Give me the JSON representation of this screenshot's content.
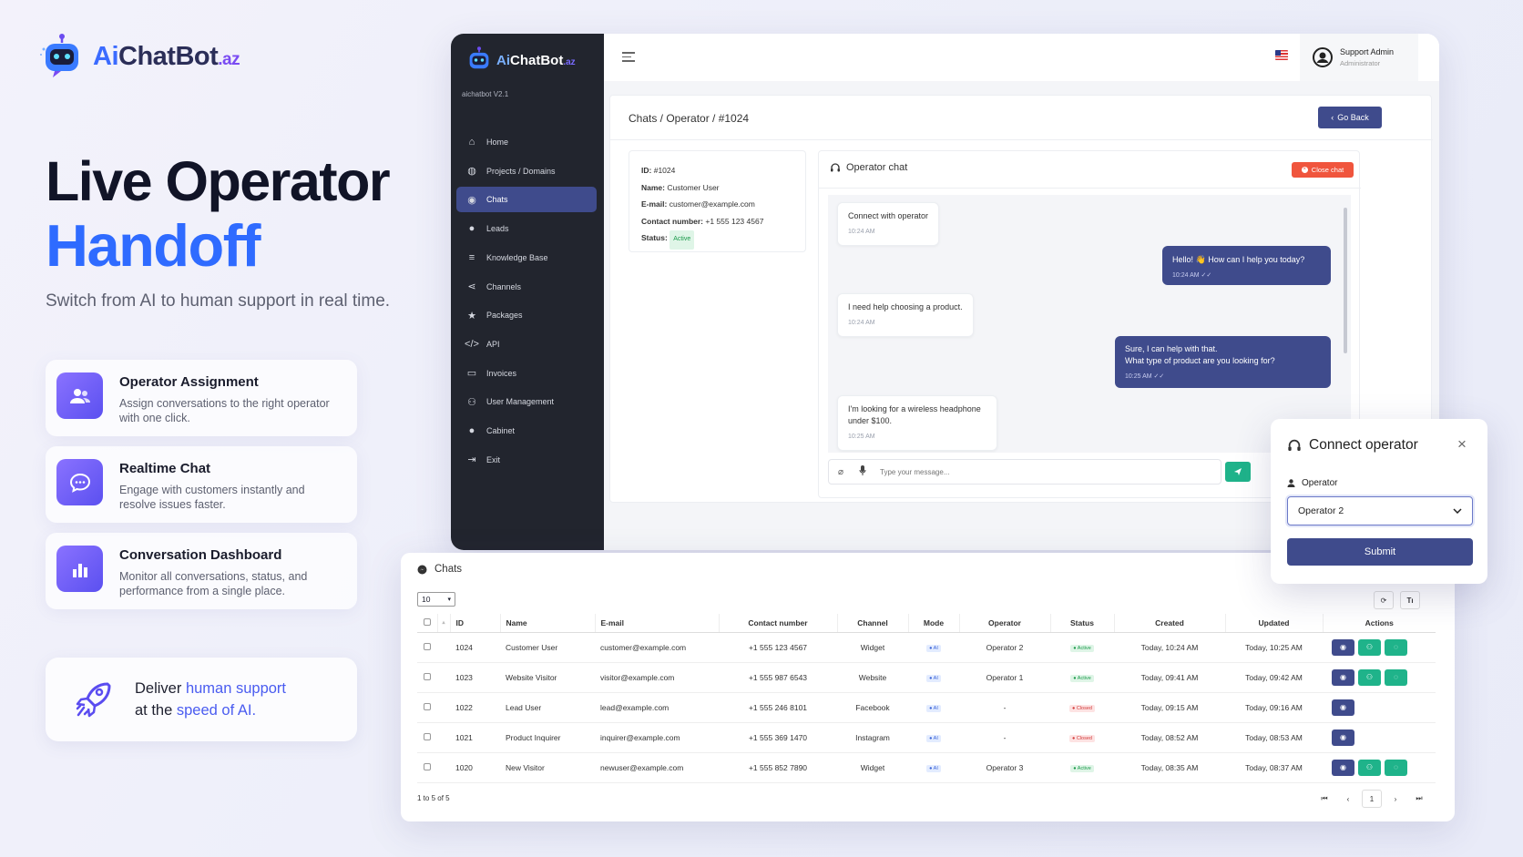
{
  "brand": {
    "ai": "Ai",
    "rest": "ChatBot",
    "tld": ".az"
  },
  "hero": {
    "line1": "Live Operator",
    "line2": "Handoff",
    "subtitle": "Switch from AI to human support in real time."
  },
  "features": [
    {
      "icon": "users-icon",
      "title": "Operator Assignment",
      "desc": "Assign conversations to the right operator with one click."
    },
    {
      "icon": "chat-icon",
      "title": "Realtime Chat",
      "desc": "Engage with customers instantly and resolve issues faster."
    },
    {
      "icon": "bar-chart-icon",
      "title": "Conversation Dashboard",
      "desc": "Monitor all conversations, status, and performance from a single place."
    }
  ],
  "deliver": {
    "p1": "Deliver ",
    "h1": "human support",
    "p2": "at the ",
    "h2": "speed of AI",
    "p3": "."
  },
  "app": {
    "sidebar_brand": {
      "ai": "Ai",
      "rest": "ChatBot",
      "tld": ".az"
    },
    "version": "aichatbot V2.1",
    "nav": [
      {
        "label": "Home",
        "icon": "home-icon"
      },
      {
        "label": "Projects / Domains",
        "icon": "globe-icon"
      },
      {
        "label": "Chats",
        "icon": "messenger-icon",
        "active": true
      },
      {
        "label": "Leads",
        "icon": "user-icon"
      },
      {
        "label": "Knowledge Base",
        "icon": "database-icon"
      },
      {
        "label": "Channels",
        "icon": "share-icon"
      },
      {
        "label": "Packages",
        "icon": "star-icon"
      },
      {
        "label": "API",
        "icon": "code-icon"
      },
      {
        "label": "Invoices",
        "icon": "card-icon"
      },
      {
        "label": "User Management",
        "icon": "users-icon"
      },
      {
        "label": "Cabinet",
        "icon": "user-icon"
      },
      {
        "label": "Exit",
        "icon": "exit-icon"
      }
    ],
    "user": {
      "name": "Support Admin",
      "role": "Administrator"
    },
    "breadcrumb": "Chats / Operator / #1024",
    "go_back": "Go Back",
    "info": {
      "id_label": "ID:",
      "id": "#1024",
      "name_label": "Name:",
      "name": "Customer User",
      "email_label": "E-mail:",
      "email": "customer@example.com",
      "contact_label": "Contact number:",
      "contact": "+1 555 123 4567",
      "status_label": "Status:",
      "status": "Active"
    },
    "chat": {
      "title": "Operator chat",
      "close": "Close chat",
      "messages": [
        {
          "side": "left",
          "text": "Connect with operator",
          "time": "10:24 AM"
        },
        {
          "side": "right",
          "text": "Hello! 👋 How can I help you today?",
          "time": "10:24 AM"
        },
        {
          "side": "left",
          "text": "I need help choosing a product.",
          "time": "10:24 AM"
        },
        {
          "side": "right",
          "text": "Sure, I can help with that.\nWhat type of product are you looking for?",
          "time": "10:25 AM"
        },
        {
          "side": "left",
          "text": "I'm looking for a wireless headphone\nunder $100.",
          "time": "10:25 AM"
        }
      ],
      "placeholder": "Type your message..."
    }
  },
  "table": {
    "title": "Chats",
    "page_size": "10",
    "headers": [
      "ID",
      "Name",
      "E-mail",
      "Contact number",
      "Channel",
      "Mode",
      "Operator",
      "Status",
      "Created",
      "Updated",
      "Actions"
    ],
    "rows": [
      {
        "id": "1024",
        "name": "Customer User",
        "email": "customer@example.com",
        "contact": "+1 555 123 4567",
        "channel": "Widget",
        "mode": "AI",
        "operator": "Operator 2",
        "status": "Active",
        "created": "Today, 10:24 AM",
        "updated": "Today, 10:25 AM",
        "full": true
      },
      {
        "id": "1023",
        "name": "Website Visitor",
        "email": "visitor@example.com",
        "contact": "+1 555 987 6543",
        "channel": "Website",
        "mode": "AI",
        "operator": "Operator 1",
        "status": "Active",
        "created": "Today, 09:41 AM",
        "updated": "Today, 09:42 AM",
        "full": true
      },
      {
        "id": "1022",
        "name": "Lead User",
        "email": "lead@example.com",
        "contact": "+1 555 246 8101",
        "channel": "Facebook",
        "mode": "AI",
        "operator": "-",
        "status": "Closed",
        "created": "Today, 09:15 AM",
        "updated": "Today, 09:16 AM",
        "full": false
      },
      {
        "id": "1021",
        "name": "Product Inquirer",
        "email": "inquirer@example.com",
        "contact": "+1 555 369 1470",
        "channel": "Instagram",
        "mode": "AI",
        "operator": "-",
        "status": "Closed",
        "created": "Today, 08:52 AM",
        "updated": "Today, 08:53 AM",
        "full": false
      },
      {
        "id": "1020",
        "name": "New Visitor",
        "email": "newuser@example.com",
        "contact": "+1 555 852 7890",
        "channel": "Widget",
        "mode": "AI",
        "operator": "Operator 3",
        "status": "Active",
        "created": "Today, 08:35 AM",
        "updated": "Today, 08:37 AM",
        "full": true
      }
    ],
    "summary": "1 to 5 of 5",
    "page": "1"
  },
  "modal": {
    "title": "Connect operator",
    "label": "Operator",
    "selected": "Operator 2",
    "submit": "Submit"
  },
  "colors": {
    "accent": "#3f4b8c",
    "green": "#1fb38a",
    "red": "#f0553d",
    "brand_blue": "#2f6bff"
  }
}
